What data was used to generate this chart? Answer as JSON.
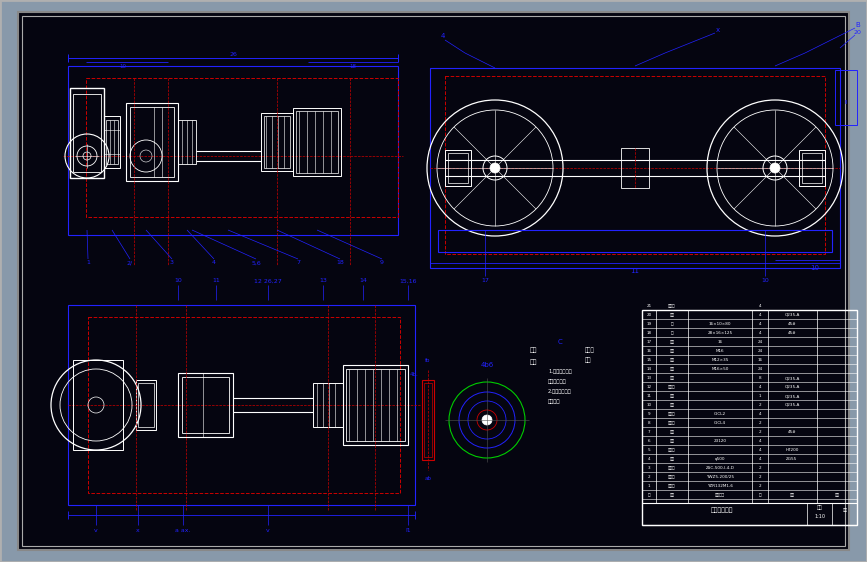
{
  "bg_color": "#050510",
  "border_outer": "#b0b0b0",
  "blue": "#2222ff",
  "red": "#cc0000",
  "white": "#ffffff",
  "green": "#00cc00",
  "fig_width": 8.67,
  "fig_height": 5.62,
  "dpi": 100,
  "outer_gray": "#8899aa"
}
